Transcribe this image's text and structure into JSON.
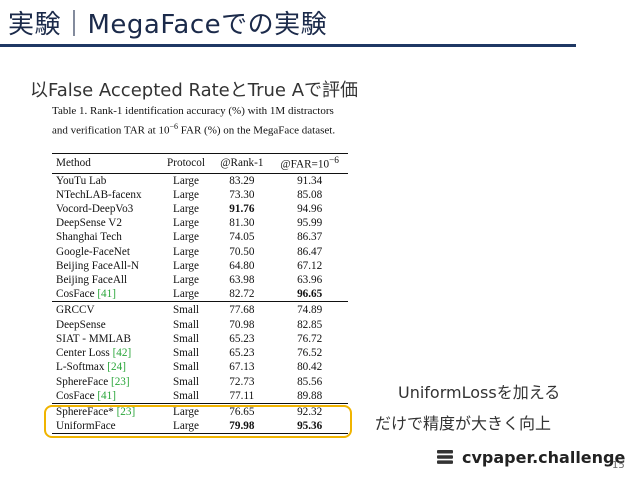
{
  "slide": {
    "title": "実験｜MegaFaceでの実験",
    "subtitle": "以False Accepted RateとTrue Aで評価",
    "note_line1": "UniformLossを加える",
    "note_line2": "だけで精度が大きく向上",
    "brand": "cvpaper.challenge",
    "brand_icon": "book-stack-icon",
    "page_number": "15",
    "accent_color": "#1f3864",
    "highlight_color": "#f0b400",
    "cite_color": "#2aa63a"
  },
  "table": {
    "caption_line1": "Table 1. Rank-1 identification accuracy (%) with 1M distractors",
    "caption_line2a": "and verification TAR at 10",
    "caption_line2_exp": "−6",
    "caption_line2b": " FAR (%) on the MegaFace dataset.",
    "headers": {
      "method": "Method",
      "protocol": "Protocol",
      "rank1": "@Rank-1",
      "far_prefix": "@FAR=10",
      "far_exp": "−6"
    },
    "rows": [
      {
        "method": "YouTu Lab",
        "cite": "",
        "protocol": "Large",
        "rank1": "83.29",
        "far": "91.34"
      },
      {
        "method": "NTechLAB-facenx",
        "cite": "",
        "protocol": "Large",
        "rank1": "73.30",
        "far": "85.08"
      },
      {
        "method": "Vocord-DeepVo3",
        "cite": "",
        "protocol": "Large",
        "rank1": "91.76",
        "far": "94.96"
      },
      {
        "method": "DeepSense V2",
        "cite": "",
        "protocol": "Large",
        "rank1": "81.30",
        "far": "95.99"
      },
      {
        "method": "Shanghai Tech",
        "cite": "",
        "protocol": "Large",
        "rank1": "74.05",
        "far": "86.37"
      },
      {
        "method": "Google-FaceNet",
        "cite": "",
        "protocol": "Large",
        "rank1": "70.50",
        "far": "86.47"
      },
      {
        "method": "Beijing FaceAll-N",
        "cite": "",
        "protocol": "Large",
        "rank1": "64.80",
        "far": "67.12"
      },
      {
        "method": "Beijing FaceAll",
        "cite": "",
        "protocol": "Large",
        "rank1": "63.98",
        "far": "63.96"
      },
      {
        "method": "CosFace ",
        "cite": "[41]",
        "protocol": "Large",
        "rank1": "82.72",
        "far": "96.65"
      },
      {
        "method": "GRCCV",
        "cite": "",
        "protocol": "Small",
        "rank1": "77.68",
        "far": "74.89"
      },
      {
        "method": "DeepSense",
        "cite": "",
        "protocol": "Small",
        "rank1": "70.98",
        "far": "82.85"
      },
      {
        "method": "SIAT - MMLAB",
        "cite": "",
        "protocol": "Small",
        "rank1": "65.23",
        "far": "76.72"
      },
      {
        "method": "Center Loss ",
        "cite": "[42]",
        "protocol": "Small",
        "rank1": "65.23",
        "far": "76.52"
      },
      {
        "method": "L-Softmax ",
        "cite": "[24]",
        "protocol": "Small",
        "rank1": "67.13",
        "far": "80.42"
      },
      {
        "method": "SphereFace ",
        "cite": "[23]",
        "protocol": "Small",
        "rank1": "72.73",
        "far": "85.56"
      },
      {
        "method": "CosFace ",
        "cite": "[41]",
        "protocol": "Small",
        "rank1": "77.11",
        "far": "89.88"
      },
      {
        "method": "SphereFace* ",
        "cite": "[23]",
        "protocol": "Large",
        "rank1": "76.65",
        "far": "92.32"
      },
      {
        "method": "UniformFace",
        "cite": "",
        "protocol": "Large",
        "rank1": "79.98",
        "far": "95.36"
      }
    ],
    "bold_cells": [
      "2.rank1",
      "8.far",
      "17.rank1",
      "17.far"
    ],
    "group_starts": [
      9,
      16
    ]
  }
}
